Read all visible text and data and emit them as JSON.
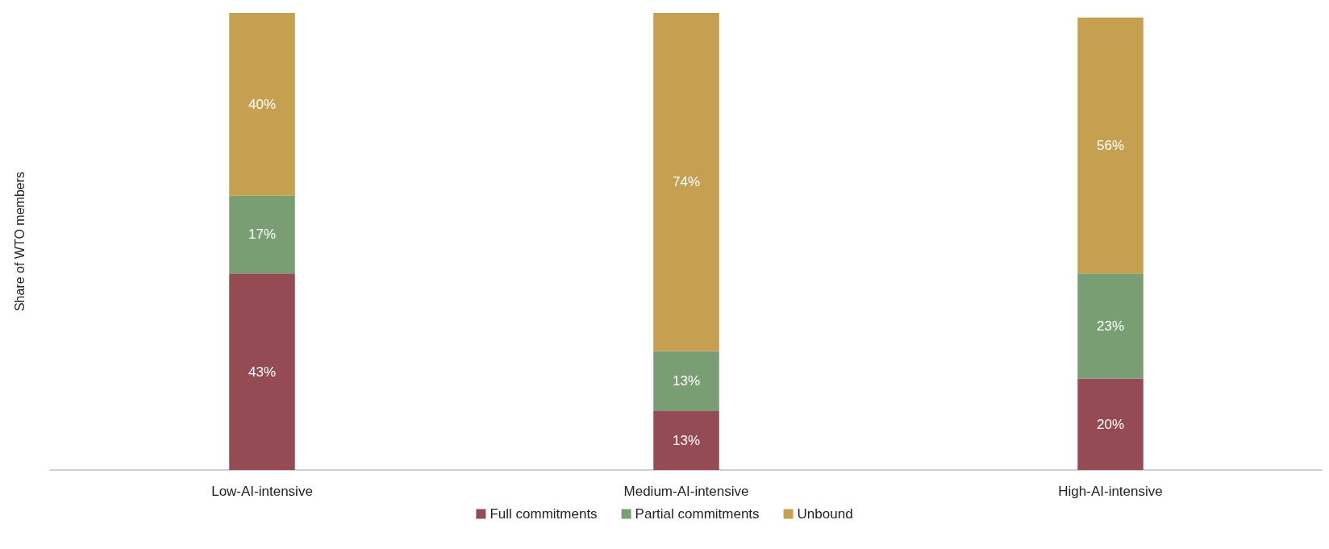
{
  "chart_data": {
    "type": "bar",
    "stacked": true,
    "ylabel": "Share of WTO members",
    "categories": [
      "Low-AI-intensive",
      "Medium-AI-intensive",
      "High-AI-intensive"
    ],
    "series": [
      {
        "name": "Full commitments",
        "color": "#954b53",
        "values": [
          43,
          13,
          20
        ],
        "value_labels": [
          "43%",
          "13%",
          "20%"
        ]
      },
      {
        "name": "Partial commitments",
        "color": "#7a9e74",
        "values": [
          17,
          13,
          23
        ],
        "value_labels": [
          "17%",
          "13%",
          "23%"
        ]
      },
      {
        "name": "Unbound",
        "color": "#c4a050",
        "values": [
          40,
          74,
          56
        ],
        "value_labels": [
          "40%",
          "74%",
          "56%"
        ]
      }
    ],
    "ylim": [
      0,
      100
    ],
    "tick_labels": "x",
    "grid": false,
    "legend": "bottom"
  }
}
